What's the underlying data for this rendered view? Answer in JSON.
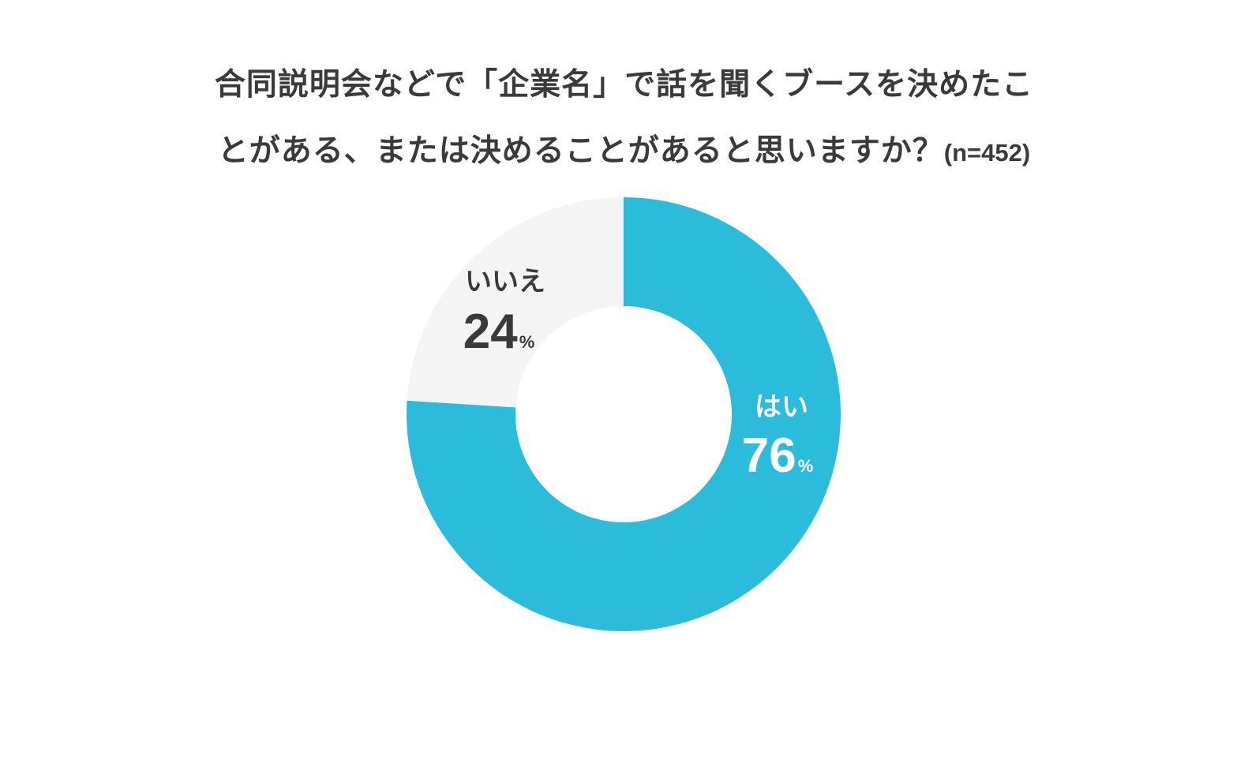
{
  "title": {
    "line1": "合同説明会などで「企業名」で話を聞くブースを決めたこ",
    "line2": "とがある、または決めることがあると思いますか？",
    "sample_size": "(n=452)"
  },
  "chart_data": {
    "type": "pie",
    "donut": true,
    "categories": [
      "はい",
      "いいえ"
    ],
    "values": [
      76,
      24
    ],
    "unit": "%",
    "colors": [
      "#2bbcdc",
      "#f4f4f4"
    ],
    "label_colors": [
      "#ffffff",
      "#3a3a3a"
    ],
    "start": "12 o'clock",
    "direction": "clockwise"
  }
}
